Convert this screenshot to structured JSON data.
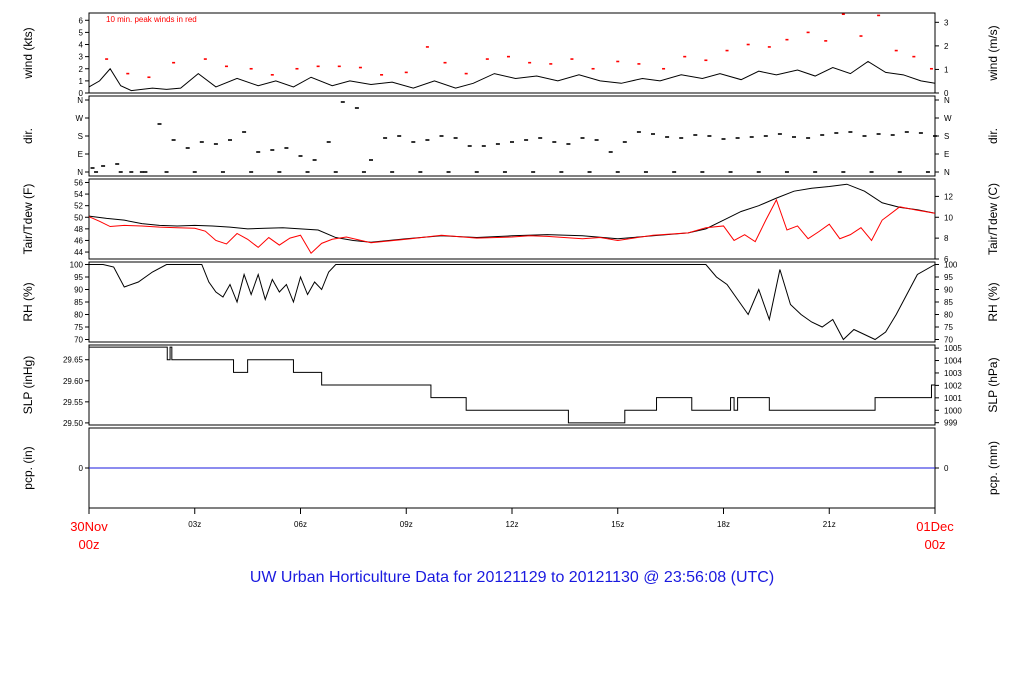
{
  "title": "UW Urban Horticulture Data for 20121129  to  20121130 @ 23:56:08  (UTC)",
  "colors": {
    "black": "#000000",
    "red": "#ff0000",
    "blue": "#1a1adf",
    "frame": "#000000"
  },
  "x_axis": {
    "start_label": [
      "30Nov",
      "00z"
    ],
    "end_label": [
      "01Dec",
      "00z"
    ],
    "ticks": [
      {
        "hour": 3,
        "label": "03z"
      },
      {
        "hour": 6,
        "label": "06z"
      },
      {
        "hour": 9,
        "label": "09z"
      },
      {
        "hour": 12,
        "label": "12z"
      },
      {
        "hour": 15,
        "label": "15z"
      },
      {
        "hour": 18,
        "label": "18z"
      },
      {
        "hour": 21,
        "label": "21z"
      }
    ],
    "range_hours": [
      0,
      24
    ]
  },
  "chart_data": [
    {
      "type": "line",
      "panel": "wind",
      "ylabel_left": "wind (kts)",
      "ylabel_right": "wind (m/s)",
      "annotation": "10 min. peak winds in red",
      "left_ticks": [
        "0",
        "1",
        "2",
        "3",
        "4",
        "5",
        "6"
      ],
      "right_ticks": [
        "0",
        "1",
        "2",
        "3"
      ],
      "ylim": [
        0,
        6.6
      ],
      "series": [
        {
          "color": "black",
          "x": [
            0,
            0.3,
            0.6,
            0.9,
            1.2,
            1.8,
            2.2,
            2.6,
            3.1,
            3.6,
            4.2,
            4.8,
            5.3,
            5.8,
            6.3,
            6.9,
            7.4,
            8.0,
            8.6,
            9.2,
            9.8,
            10.4,
            10.9,
            11.5,
            12.1,
            12.7,
            13.3,
            13.9,
            14.5,
            15.1,
            15.7,
            16.2,
            16.8,
            17.4,
            17.9,
            18.5,
            19.0,
            19.5,
            20.1,
            20.6,
            21.1,
            21.6,
            22.1,
            22.6,
            23.1,
            23.6,
            24.0
          ],
          "values": [
            0.5,
            1.0,
            2.0,
            0.6,
            0.2,
            0.4,
            0.3,
            0.4,
            1.6,
            0.5,
            1.2,
            0.6,
            1.0,
            0.5,
            1.3,
            0.6,
            1.0,
            0.7,
            0.9,
            0.4,
            1.0,
            0.4,
            0.8,
            1.6,
            1.2,
            1.4,
            1.0,
            1.5,
            1.0,
            0.8,
            1.2,
            1.0,
            1.5,
            1.2,
            1.6,
            1.1,
            1.8,
            1.5,
            1.9,
            1.4,
            2.1,
            1.6,
            2.6,
            1.7,
            1.5,
            1.0,
            0.8
          ]
        },
        {
          "name": "10 min. peak winds",
          "color": "red",
          "x": [
            0.5,
            1.1,
            1.7,
            2.4,
            3.3,
            3.9,
            4.6,
            5.2,
            5.9,
            6.5,
            7.1,
            7.7,
            8.3,
            9.0,
            9.6,
            10.1,
            10.7,
            11.3,
            11.9,
            12.5,
            13.1,
            13.7,
            14.3,
            15.0,
            15.6,
            16.3,
            16.9,
            17.5,
            18.1,
            18.7,
            19.3,
            19.8,
            20.4,
            20.9,
            21.4,
            21.9,
            22.4,
            22.9,
            23.4,
            23.9
          ],
          "values": [
            2.8,
            1.6,
            1.3,
            2.5,
            2.8,
            2.2,
            2.0,
            1.5,
            2.0,
            2.2,
            2.2,
            2.1,
            1.5,
            1.7,
            3.8,
            2.5,
            1.6,
            2.8,
            3.0,
            2.5,
            2.4,
            2.8,
            2.0,
            2.6,
            2.4,
            2.0,
            3.0,
            2.7,
            3.5,
            4.0,
            3.8,
            4.4,
            5.0,
            4.3,
            6.5,
            4.7,
            6.4,
            3.5,
            3.0,
            2.0
          ]
        }
      ]
    },
    {
      "type": "scatter",
      "panel": "dir",
      "ylabel_left": "dir.",
      "ylabel_right": "dir.",
      "left_ticks": [
        "N",
        "E",
        "S",
        "W",
        "N"
      ],
      "right_ticks": [
        "N",
        "E",
        "S",
        "W",
        "N"
      ],
      "ylim": [
        0,
        360
      ],
      "series": [
        {
          "color": "black",
          "x": [
            0.1,
            0.4,
            0.8,
            1.2,
            1.6,
            2.0,
            2.4,
            2.8,
            3.2,
            3.6,
            4.0,
            4.4,
            4.8,
            5.2,
            5.6,
            6.0,
            6.4,
            6.8,
            7.2,
            7.6,
            8.0,
            8.4,
            8.8,
            9.2,
            9.6,
            10.0,
            10.4,
            10.8,
            11.2,
            11.6,
            12.0,
            12.4,
            12.8,
            13.2,
            13.6,
            14.0,
            14.4,
            14.8,
            15.2,
            15.6,
            16.0,
            16.4,
            16.8,
            17.2,
            17.6,
            18.0,
            18.4,
            18.8,
            19.2,
            19.6,
            20.0,
            20.4,
            20.8,
            21.2,
            21.6,
            22.0,
            22.4,
            22.8,
            23.2,
            23.6,
            24.0
          ],
          "values": [
            20,
            30,
            40,
            0,
            0,
            240,
            160,
            120,
            150,
            140,
            160,
            200,
            100,
            110,
            120,
            80,
            60,
            150,
            350,
            320,
            60,
            170,
            180,
            150,
            160,
            180,
            170,
            130,
            130,
            140,
            150,
            160,
            170,
            150,
            140,
            170,
            160,
            100,
            150,
            200,
            190,
            175,
            170,
            185,
            180,
            165,
            170,
            175,
            180,
            190,
            175,
            170,
            185,
            195,
            200,
            180,
            190,
            185,
            200,
            195,
            180
          ]
        },
        {
          "color": "black",
          "x": [
            0.2,
            0.9,
            1.5,
            2.2,
            3.0,
            3.8,
            4.6,
            5.4,
            6.2,
            7.0,
            7.8,
            8.6,
            9.4,
            10.2,
            11.0,
            11.8,
            12.6,
            13.4,
            14.2,
            15.0,
            15.8,
            16.6,
            17.4,
            18.2,
            19.0,
            19.8,
            20.6,
            21.4,
            22.2,
            23.0,
            23.8
          ],
          "values": [
            0,
            0,
            0,
            0,
            0,
            0,
            0,
            0,
            0,
            0,
            0,
            0,
            0,
            0,
            0,
            0,
            0,
            0,
            0,
            0,
            0,
            0,
            0,
            0,
            0,
            0,
            0,
            0,
            0,
            0,
            0
          ]
        }
      ]
    },
    {
      "type": "line",
      "panel": "temp",
      "ylabel_left": "Tair/Tdew (F)",
      "ylabel_right": "Tair/Tdew (C)",
      "left_ticks": [
        "44",
        "46",
        "48",
        "50",
        "52",
        "54",
        "56"
      ],
      "right_ticks": [
        "6",
        "8",
        "10",
        "12"
      ],
      "ylim": [
        42.8,
        56.6
      ],
      "series": [
        {
          "name": "Tair",
          "color": "black",
          "x": [
            0,
            0.5,
            1.0,
            1.5,
            2.0,
            2.5,
            3.0,
            3.5,
            4.0,
            4.5,
            5.0,
            5.5,
            6.0,
            6.5,
            7.0,
            7.5,
            8.0,
            9.0,
            10.0,
            11.0,
            12.0,
            13.0,
            14.0,
            15.0,
            16.0,
            17.0,
            17.5,
            18.0,
            18.5,
            19.0,
            19.5,
            20.0,
            20.5,
            21.0,
            21.5,
            22.0,
            22.5,
            23.0,
            23.5,
            24.0
          ],
          "values": [
            50.2,
            49.8,
            49.5,
            48.9,
            48.6,
            48.5,
            48.6,
            48.5,
            48.3,
            48.0,
            48.1,
            48.2,
            48.0,
            47.8,
            46.5,
            46.0,
            45.7,
            46.3,
            46.8,
            46.5,
            46.8,
            47.0,
            46.8,
            46.3,
            46.8,
            47.3,
            48.0,
            49.5,
            51.0,
            52.0,
            53.3,
            54.5,
            55.0,
            55.3,
            55.7,
            54.5,
            52.5,
            51.7,
            51.3,
            50.7
          ]
        },
        {
          "name": "Tdew",
          "color": "red",
          "x": [
            0,
            0.3,
            0.6,
            1.0,
            1.5,
            2.0,
            2.5,
            3.0,
            3.3,
            3.6,
            3.9,
            4.2,
            4.5,
            4.8,
            5.1,
            5.4,
            5.7,
            6.0,
            6.3,
            6.6,
            6.9,
            7.3,
            8.0,
            9.0,
            10.0,
            11.0,
            12.0,
            12.5,
            13.0,
            14.0,
            14.5,
            15.0,
            16.0,
            17.0,
            17.5,
            18.0,
            18.3,
            18.6,
            18.9,
            19.2,
            19.5,
            19.8,
            20.1,
            20.4,
            20.7,
            21.0,
            21.3,
            21.6,
            21.9,
            22.2,
            22.5,
            23.0,
            23.5,
            24.0
          ],
          "values": [
            50.1,
            49.3,
            48.4,
            48.6,
            48.5,
            48.3,
            48.2,
            48.1,
            47.6,
            46.0,
            45.4,
            47.2,
            46.2,
            44.8,
            46.5,
            45.2,
            46.4,
            46.9,
            43.8,
            45.5,
            46.2,
            46.6,
            45.6,
            46.2,
            46.9,
            46.4,
            46.6,
            46.8,
            46.7,
            46.3,
            46.5,
            46.0,
            46.9,
            47.3,
            48.2,
            48.5,
            46.0,
            47.0,
            45.8,
            49.5,
            53.0,
            47.8,
            48.5,
            46.3,
            47.5,
            48.8,
            46.3,
            47.0,
            48.2,
            46.0,
            49.5,
            51.8,
            51.2,
            50.7
          ]
        }
      ]
    },
    {
      "type": "line",
      "panel": "rh",
      "ylabel_left": "RH (%)",
      "ylabel_right": "RH (%)",
      "left_ticks": [
        "70",
        "75",
        "80",
        "85",
        "90",
        "95",
        "100"
      ],
      "right_ticks": [
        "70",
        "75",
        "80",
        "85",
        "90",
        "95",
        "100"
      ],
      "ylim": [
        69,
        101
      ],
      "series": [
        {
          "color": "black",
          "x": [
            0,
            0.4,
            0.7,
            1.0,
            1.4,
            1.8,
            2.2,
            2.7,
            3.2,
            3.4,
            3.6,
            3.8,
            4.0,
            4.2,
            4.4,
            4.6,
            4.8,
            5.0,
            5.2,
            5.4,
            5.6,
            5.8,
            6.0,
            6.2,
            6.4,
            6.6,
            6.8,
            7.0,
            7.3,
            7.6,
            8.0,
            12.0,
            16.0,
            17.5,
            17.8,
            18.1,
            18.4,
            18.7,
            19.0,
            19.3,
            19.6,
            19.9,
            20.2,
            20.5,
            20.8,
            21.1,
            21.4,
            21.7,
            22.0,
            22.3,
            22.6,
            22.9,
            23.2,
            23.5,
            24.0
          ],
          "values": [
            100,
            100,
            99,
            91,
            93,
            97,
            100,
            100,
            100,
            93,
            89,
            87,
            92,
            85,
            96,
            88,
            96,
            86,
            94,
            89,
            92,
            85,
            95,
            88,
            93,
            90,
            97,
            100,
            100,
            100,
            100,
            100,
            100,
            100,
            95,
            92,
            86,
            80,
            90,
            78,
            98,
            84,
            80,
            77,
            75,
            78,
            70,
            74,
            72,
            70,
            73,
            80,
            88,
            96,
            100
          ]
        }
      ]
    },
    {
      "type": "line",
      "panel": "slp",
      "ylabel_left": "SLP (inHg)",
      "ylabel_right": "SLP (hPa)",
      "left_ticks": [
        "29.50",
        "29.55",
        "29.60",
        "29.65"
      ],
      "right_ticks": [
        "999",
        "1000",
        "1001",
        "1002",
        "1003",
        "1004",
        "1005"
      ],
      "ylim": [
        29.495,
        29.685
      ],
      "series": [
        {
          "color": "black",
          "step": true,
          "x": [
            0,
            2.2,
            2.22,
            2.3,
            2.35,
            4.1,
            4.5,
            5.8,
            6.6,
            7.5,
            8.6,
            9.7,
            10.7,
            11.8,
            12.8,
            13.6,
            14.5,
            15.2,
            15.8,
            16.1,
            16.7,
            17.1,
            17.8,
            18.2,
            18.3,
            18.4,
            18.6,
            19.3,
            20.0,
            21.0,
            22.0,
            22.3,
            22.8,
            23.5,
            23.9,
            24.0
          ],
          "values": [
            29.68,
            29.68,
            29.65,
            29.68,
            29.65,
            29.62,
            29.65,
            29.62,
            29.59,
            29.59,
            29.59,
            29.56,
            29.53,
            29.53,
            29.53,
            29.5,
            29.5,
            29.53,
            29.53,
            29.56,
            29.56,
            29.53,
            29.53,
            29.56,
            29.53,
            29.56,
            29.56,
            29.53,
            29.53,
            29.53,
            29.53,
            29.56,
            29.56,
            29.56,
            29.59,
            29.59
          ]
        }
      ]
    },
    {
      "type": "line",
      "panel": "pcp",
      "ylabel_left": "pcp. (in)",
      "ylabel_right": "pcp. (mm)",
      "left_ticks": [
        "0"
      ],
      "right_ticks": [
        "0"
      ],
      "ylim": [
        -1,
        1
      ],
      "series": [
        {
          "color": "blue",
          "x": [
            0,
            24
          ],
          "values": [
            0,
            0
          ]
        }
      ]
    }
  ]
}
